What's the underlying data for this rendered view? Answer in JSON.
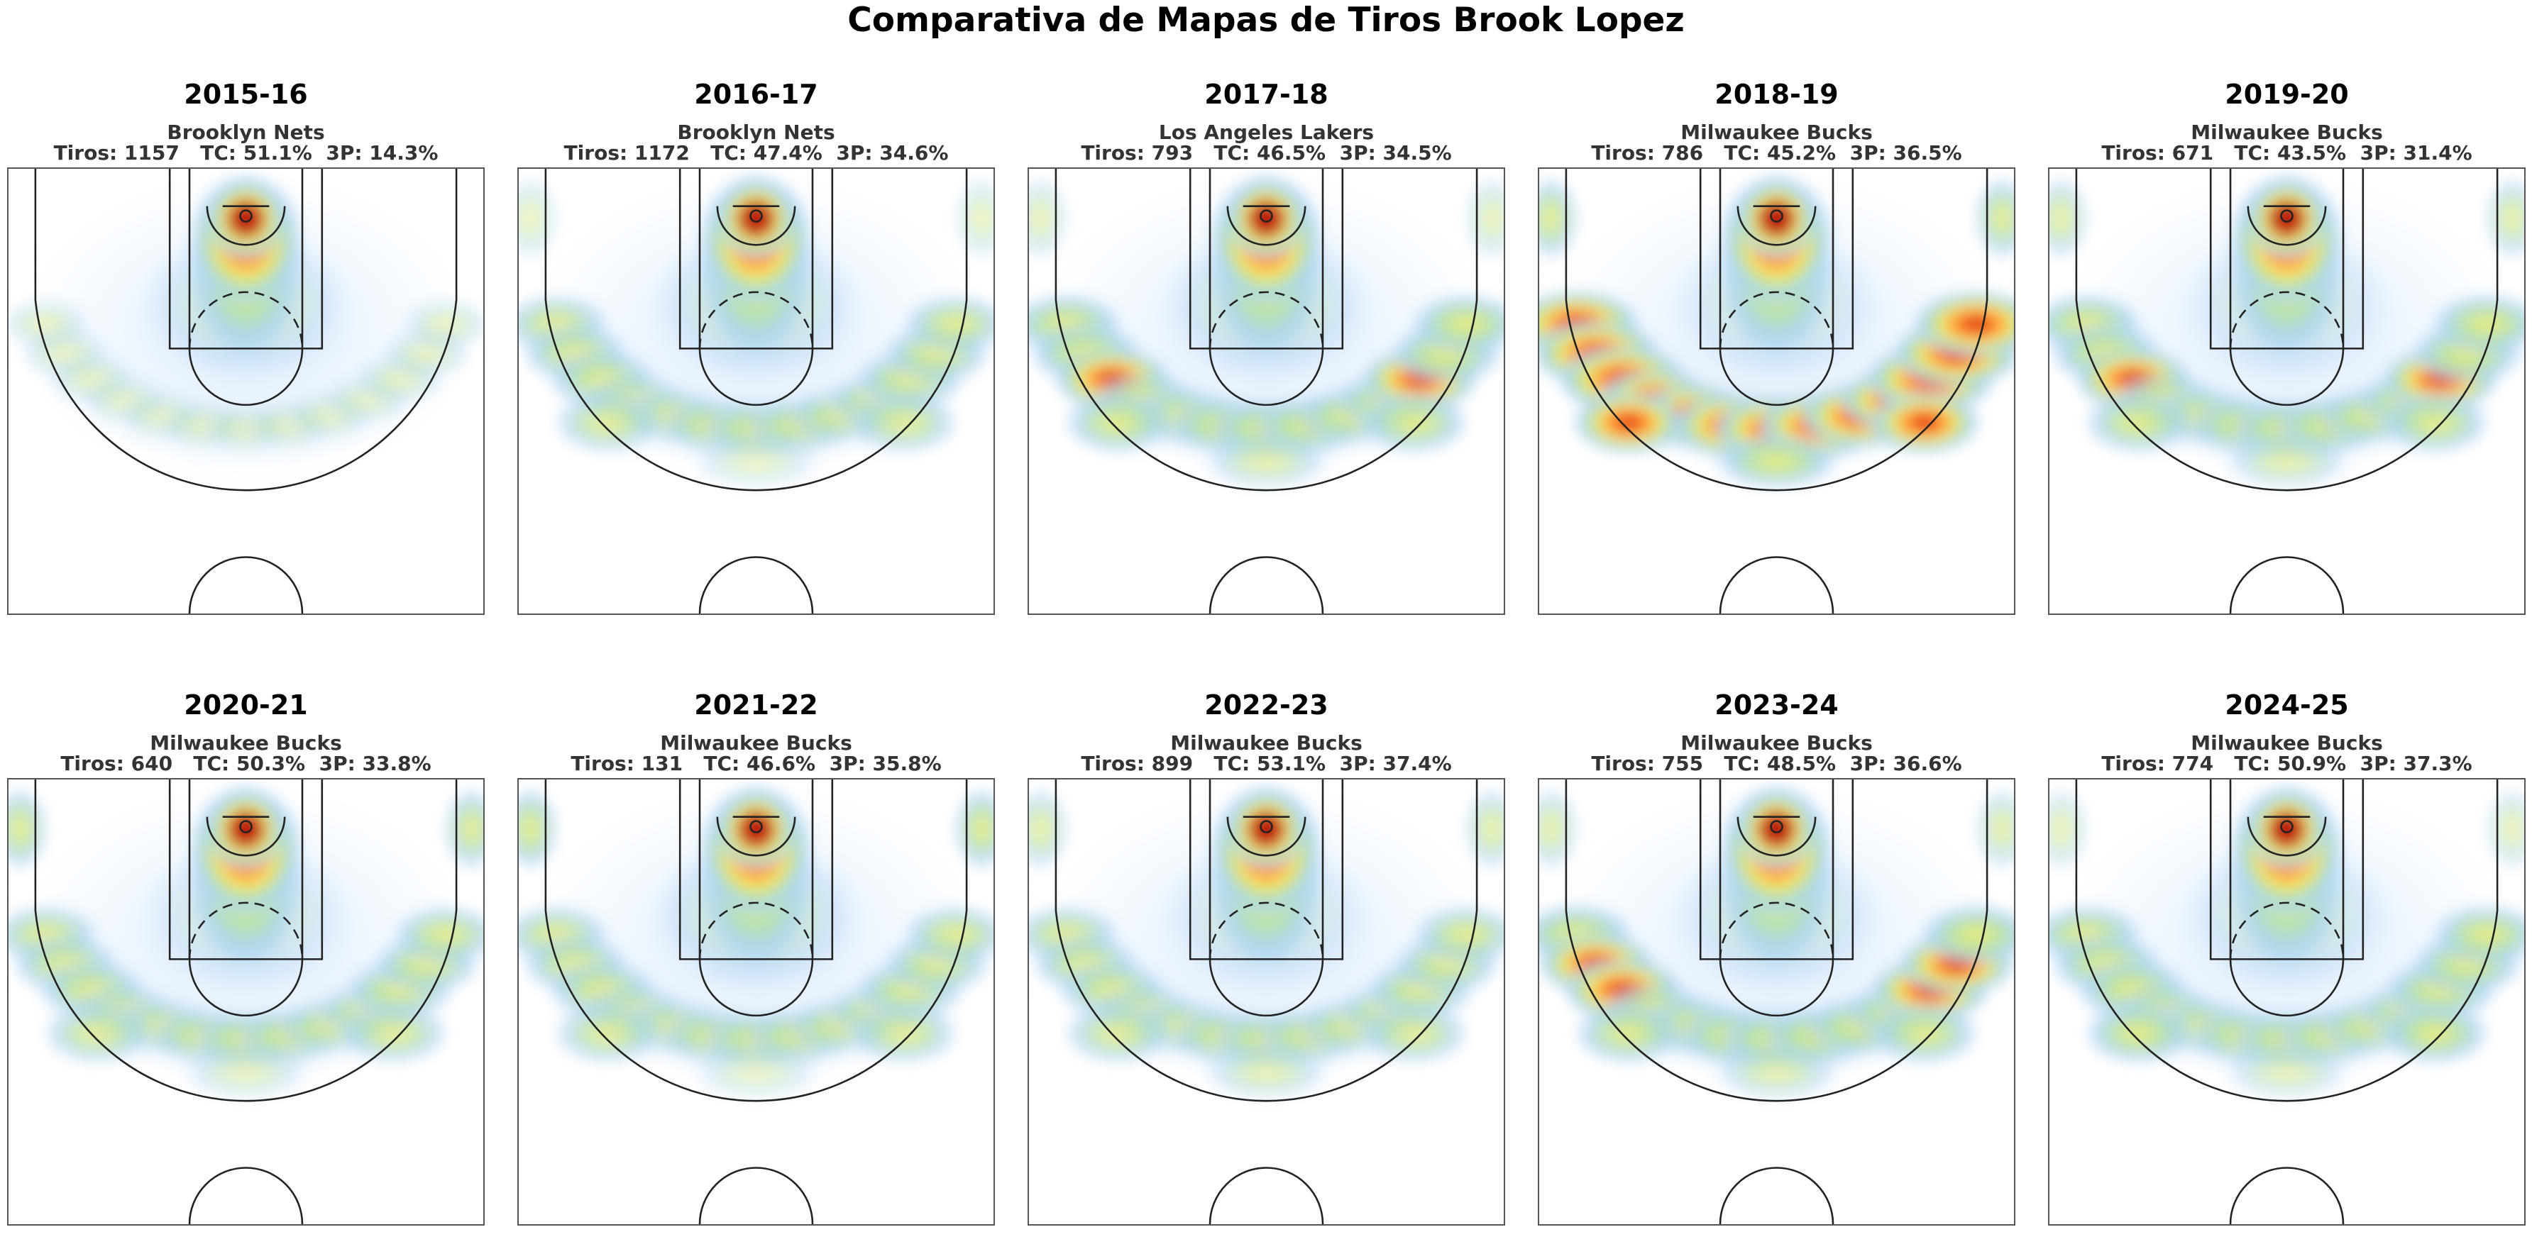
{
  "chart_data": {
    "type": "heatmap",
    "title": "Comparativa de Mapas de Tiros Brook Lopez",
    "colormap": [
      "#ffffff",
      "#cfe5fb",
      "#a9d0f5",
      "#b9e4a4",
      "#f2eb6a",
      "#ffb347",
      "#ff7f24",
      "#e8401a",
      "#b81409"
    ],
    "panels": [
      {
        "season": "2015-16",
        "team": "Brooklyn Nets",
        "shots": 1157,
        "fg_pct": "51.1%",
        "three_pct": "14.3%",
        "corner_three": 0.0,
        "wing_three": 0.15,
        "top_three": 0.1,
        "arc_spread": 0.1,
        "midrange": 0.25,
        "paint": 0.45
      },
      {
        "season": "2016-17",
        "team": "Brooklyn Nets",
        "shots": 1172,
        "fg_pct": "47.4%",
        "three_pct": "34.6%",
        "corner_three": 0.2,
        "wing_three": 0.55,
        "top_three": 0.4,
        "arc_spread": 0.45,
        "midrange": 0.25,
        "paint": 0.6
      },
      {
        "season": "2017-18",
        "team": "Los Angeles Lakers",
        "shots": 793,
        "fg_pct": "46.5%",
        "three_pct": "34.5%",
        "corner_three": 0.25,
        "wing_three": 0.65,
        "top_three": 0.6,
        "arc_spread": 0.55,
        "midrange": 0.25,
        "paint": 0.7
      },
      {
        "season": "2018-19",
        "team": "Milwaukee Bucks",
        "shots": 786,
        "fg_pct": "45.2%",
        "three_pct": "36.5%",
        "corner_three": 0.55,
        "wing_three": 0.85,
        "top_three": 0.9,
        "arc_spread": 0.8,
        "midrange": 0.15,
        "paint": 0.55
      },
      {
        "season": "2019-20",
        "team": "Milwaukee Bucks",
        "shots": 671,
        "fg_pct": "43.5%",
        "three_pct": "31.4%",
        "corner_three": 0.4,
        "wing_three": 0.65,
        "top_three": 0.6,
        "arc_spread": 0.55,
        "midrange": 0.15,
        "paint": 0.6
      },
      {
        "season": "2020-21",
        "team": "Milwaukee Bucks",
        "shots": 640,
        "fg_pct": "50.3%",
        "three_pct": "33.8%",
        "corner_three": 0.55,
        "wing_three": 0.55,
        "top_three": 0.45,
        "arc_spread": 0.45,
        "midrange": 0.15,
        "paint": 0.6
      },
      {
        "season": "2021-22",
        "team": "Milwaukee Bucks",
        "shots": 131,
        "fg_pct": "46.6%",
        "three_pct": "35.8%",
        "corner_three": 0.6,
        "wing_three": 0.55,
        "top_three": 0.4,
        "arc_spread": 0.45,
        "midrange": 0.3,
        "paint": 0.55
      },
      {
        "season": "2022-23",
        "team": "Milwaukee Bucks",
        "shots": 899,
        "fg_pct": "53.1%",
        "three_pct": "37.4%",
        "corner_three": 0.4,
        "wing_three": 0.55,
        "top_three": 0.55,
        "arc_spread": 0.45,
        "midrange": 0.15,
        "paint": 0.65
      },
      {
        "season": "2023-24",
        "team": "Milwaukee Bucks",
        "shots": 755,
        "fg_pct": "48.5%",
        "three_pct": "36.6%",
        "corner_three": 0.35,
        "wing_three": 0.65,
        "top_three": 0.6,
        "arc_spread": 0.6,
        "midrange": 0.2,
        "paint": 0.65
      },
      {
        "season": "2024-25",
        "team": "Milwaukee Bucks",
        "shots": 774,
        "fg_pct": "50.9%",
        "three_pct": "37.3%",
        "corner_three": 0.25,
        "wing_three": 0.7,
        "top_three": 0.5,
        "arc_spread": 0.5,
        "midrange": 0.2,
        "paint": 0.65
      }
    ]
  },
  "labels": {
    "shots_prefix": "Tiros: ",
    "fg_prefix": "TC: ",
    "three_prefix": "3P: "
  }
}
